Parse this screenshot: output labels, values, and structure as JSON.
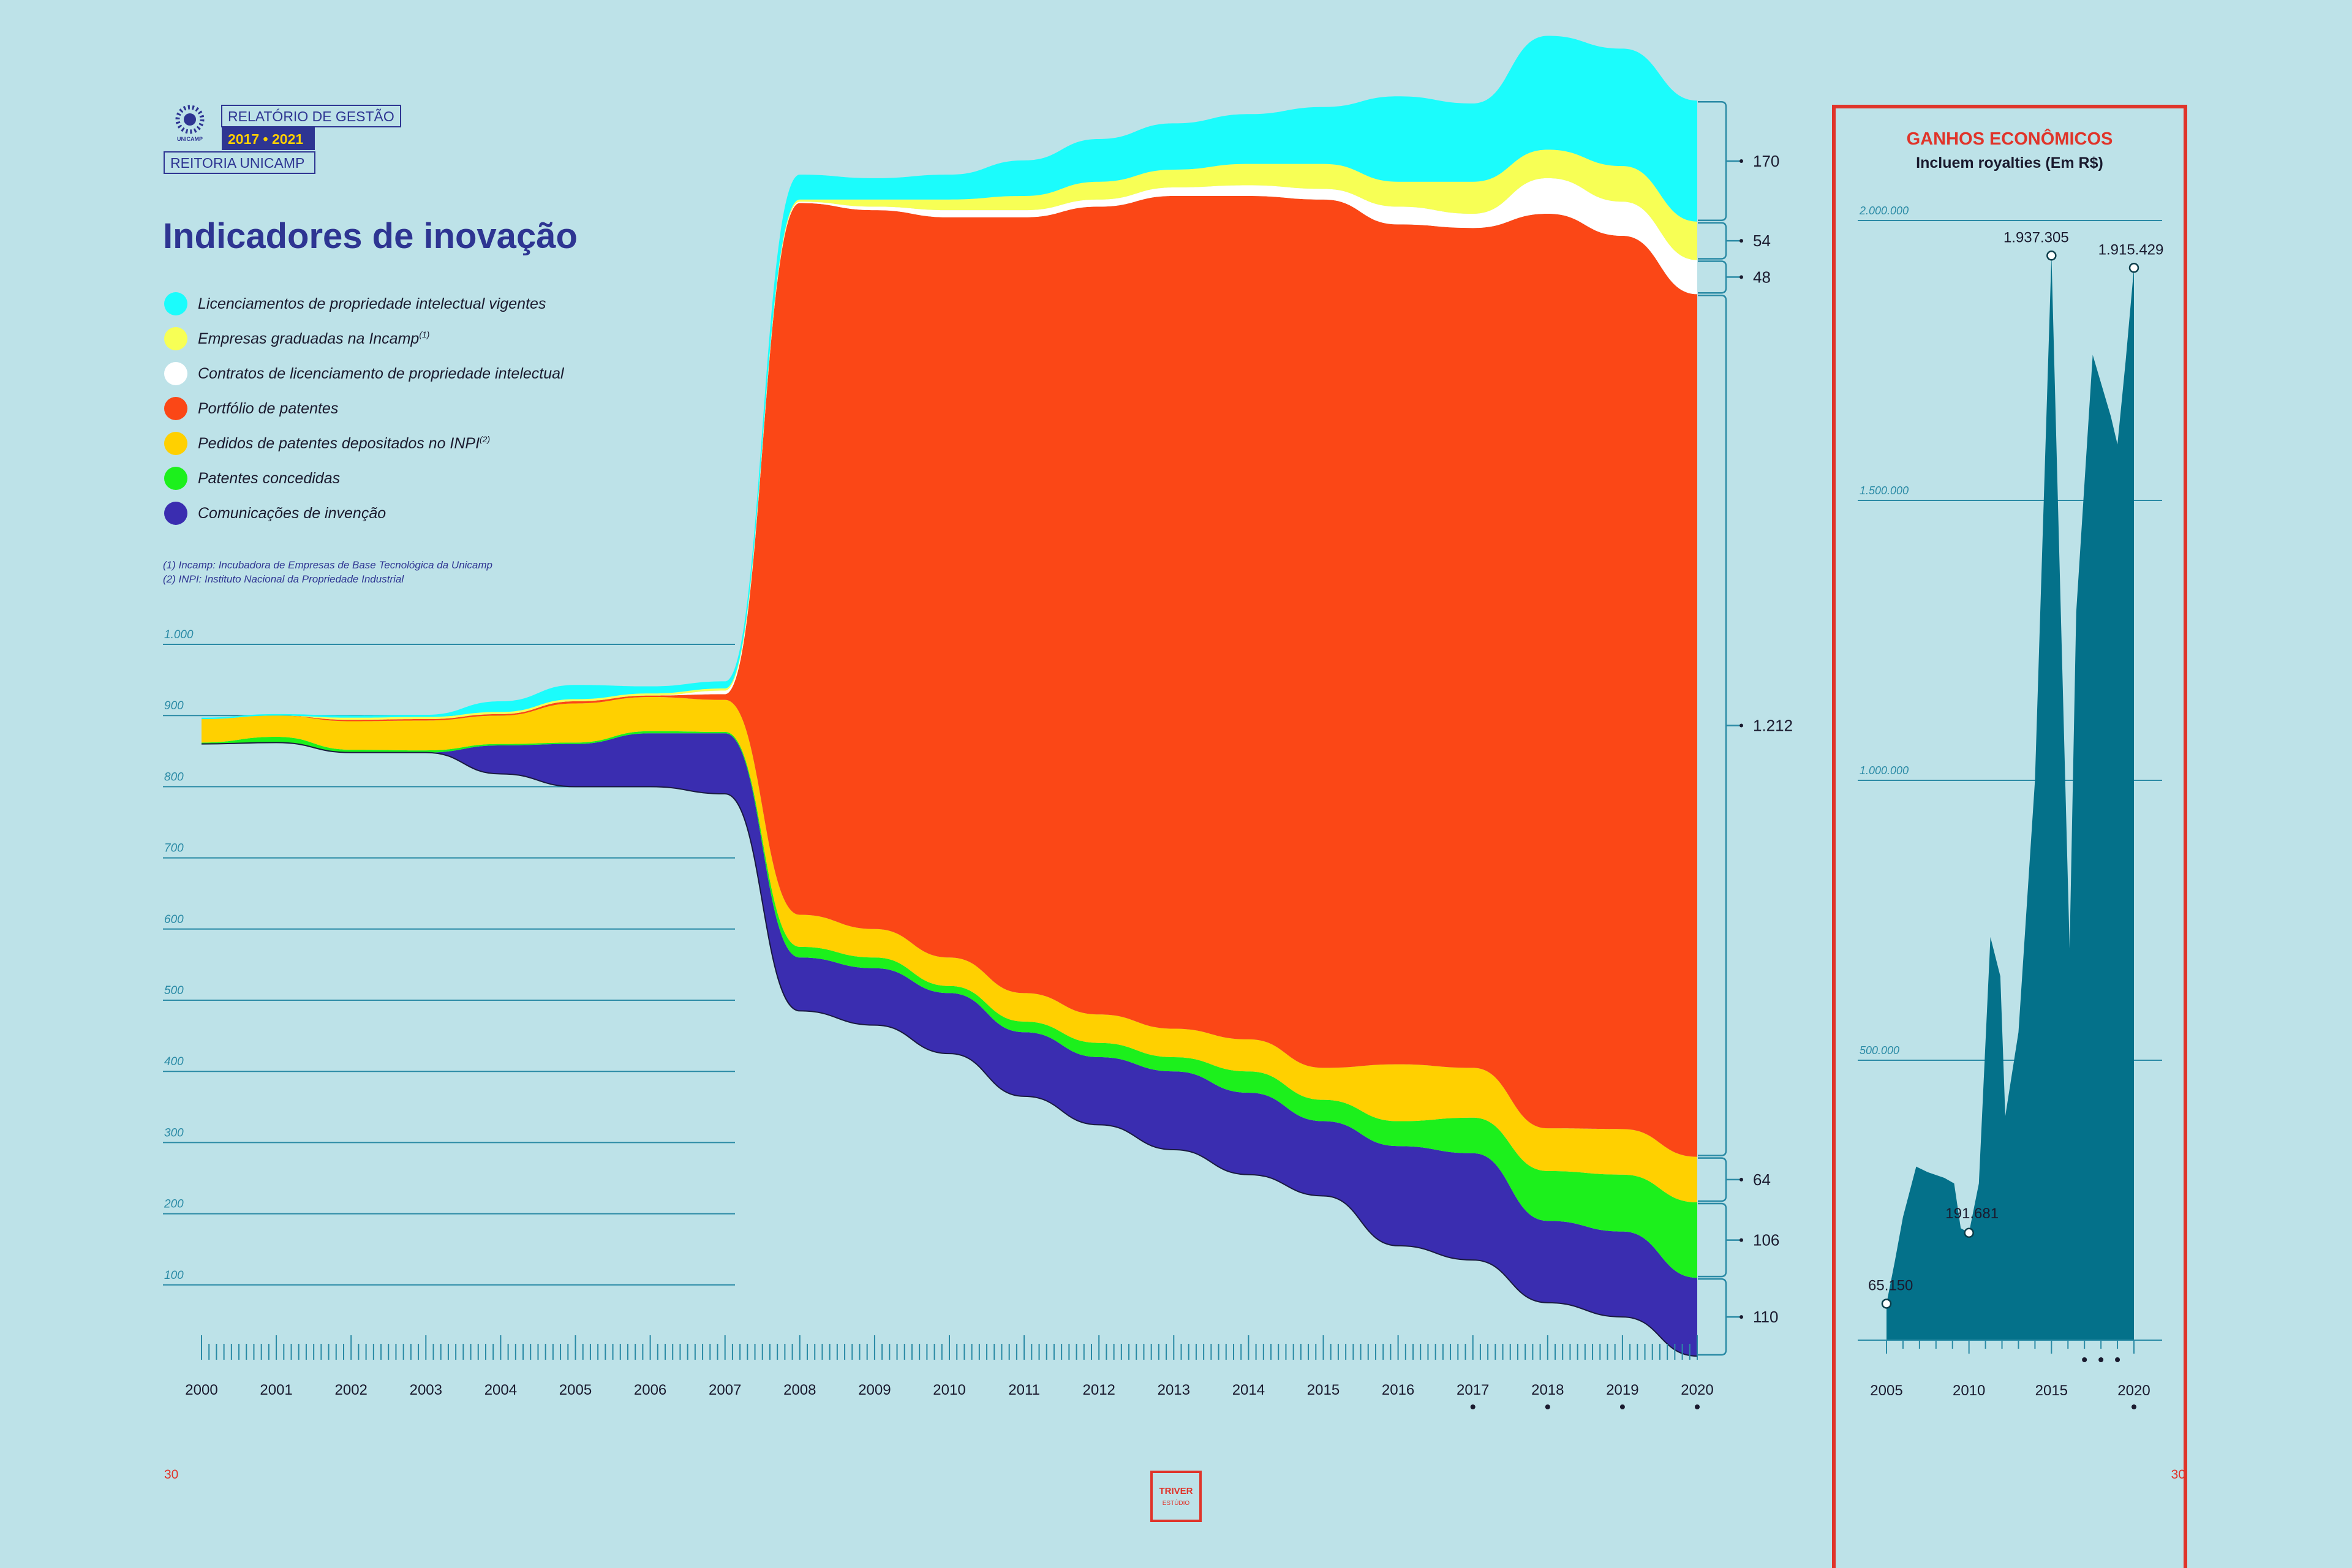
{
  "header": {
    "report_label": "RELATÓRIO DE GESTÃO",
    "period": "2017 • 2021",
    "org": "REITORIA UNICAMP",
    "logo_text": "UNICAMP"
  },
  "title": "Indicadores de inovação",
  "footnotes": [
    "(1) Incamp: Incubadora de Empresas de Base Tecnológica da Unicamp",
    "(2) INPI: Instituto Nacional da Propriedade Industrial"
  ],
  "page_numbers": {
    "left": "30",
    "right": "30"
  },
  "studio": {
    "line1": "TRIVER",
    "line2": "ESTÚDIO"
  },
  "colors": {
    "background": "#bde2e8",
    "title": "#2e3592",
    "accent_red": "#e0342a",
    "axis": "#2a8aa5"
  },
  "chart_data": [
    {
      "type": "area",
      "subtype": "stacked-stream",
      "title": "Indicadores de inovação",
      "x": [
        2000,
        2001,
        2002,
        2003,
        2004,
        2005,
        2006,
        2007,
        2008,
        2009,
        2010,
        2011,
        2012,
        2013,
        2014,
        2015,
        2016,
        2017,
        2018,
        2019,
        2020
      ],
      "x_tick_labels": [
        "2000",
        "2001",
        "2002",
        "2003",
        "2004",
        "2005",
        "2006",
        "2007",
        "2008",
        "2009",
        "2010",
        "2011",
        "2012",
        "2013",
        "2014",
        "2015",
        "2016",
        "2017",
        "2018",
        "2019",
        "2020"
      ],
      "x_marked": [
        2017,
        2018,
        2019,
        2020
      ],
      "y_ticks": [
        100,
        200,
        300,
        400,
        500,
        600,
        700,
        800,
        900,
        1000
      ],
      "y_tick_labels": [
        "100",
        "200",
        "300",
        "400",
        "500",
        "600",
        "700",
        "800",
        "900",
        "1.000"
      ],
      "grid": true,
      "legend_position": "top-left",
      "baseline": [
        860,
        862,
        848,
        848,
        818,
        800,
        800,
        790,
        485,
        465,
        425,
        365,
        325,
        290,
        255,
        225,
        155,
        135,
        75,
        55,
        0
      ],
      "series": [
        {
          "name": "Comunicações de invenção",
          "color": "#3a2db0",
          "values": [
            0,
            0,
            0,
            0,
            40,
            60,
            75,
            85,
            75,
            80,
            85,
            90,
            95,
            110,
            115,
            105,
            140,
            150,
            115,
            120,
            110
          ]
        },
        {
          "name": "Patentes concedidas",
          "color": "#1cf01c",
          "values": [
            2,
            8,
            4,
            3,
            2,
            2,
            3,
            2,
            15,
            15,
            10,
            15,
            20,
            20,
            30,
            30,
            35,
            50,
            70,
            80,
            106
          ]
        },
        {
          "name": "Pedidos de patentes depositados no INPI",
          "name_sup": "(2)",
          "color": "#ffd000",
          "values": [
            33,
            30,
            40,
            42,
            40,
            55,
            48,
            45,
            45,
            40,
            40,
            40,
            40,
            40,
            45,
            45,
            80,
            70,
            60,
            64,
            64
          ]
        },
        {
          "name": "Portfólio de patentes",
          "color": "#fb4716",
          "values": [
            0,
            0,
            2,
            2,
            2,
            3,
            2,
            8,
            1000,
            1010,
            1040,
            1090,
            1135,
            1170,
            1185,
            1220,
            1180,
            1180,
            1285,
            1255,
            1212
          ]
        },
        {
          "name": "Contratos de licenciamento de propriedade intelectual",
          "color": "#ffffff",
          "values": [
            0,
            0,
            0,
            0,
            0,
            0,
            0,
            5,
            2,
            5,
            10,
            10,
            10,
            12,
            15,
            15,
            25,
            20,
            50,
            48,
            48
          ]
        },
        {
          "name": "Empresas graduadas na Incamp",
          "name_sup": "(1)",
          "color": "#f7ff55",
          "values": [
            0,
            0,
            3,
            3,
            3,
            3,
            3,
            3,
            3,
            10,
            15,
            20,
            25,
            25,
            30,
            35,
            35,
            45,
            40,
            50,
            54
          ]
        },
        {
          "name": "Licenciamentos de propriedade intelectual vigentes",
          "color": "#1bfcfc",
          "values": [
            2,
            2,
            3,
            3,
            15,
            20,
            10,
            10,
            35,
            30,
            35,
            50,
            60,
            65,
            70,
            80,
            120,
            110,
            160,
            165,
            170
          ]
        }
      ],
      "end_labels": [
        "110",
        "106",
        "64",
        "1.212",
        "48",
        "54",
        "170"
      ]
    },
    {
      "type": "area",
      "title": "GANHOS ECONÔMICOS",
      "subtitle": "Incluem royalties (Em R$)",
      "color": "#04718a",
      "x": [
        2005,
        2005.5,
        2006,
        2006.8,
        2007.5,
        2008.5,
        2009.1,
        2009.5,
        2010,
        2010.6,
        2011.3,
        2011.9,
        2012.2,
        2013,
        2014,
        2015,
        2016.1,
        2016.5,
        2017.5,
        2018.6,
        2019,
        2019.5,
        2020
      ],
      "y": [
        65150,
        140000,
        220000,
        310000,
        300000,
        290000,
        280000,
        200000,
        191681,
        280000,
        720000,
        650000,
        400000,
        550000,
        1000000,
        1937305,
        700000,
        1300000,
        1760000,
        1650000,
        1600000,
        1750000,
        1915429
      ],
      "x_tick_labels": [
        "2005",
        "2010",
        "2015",
        "2020"
      ],
      "x_marked": [
        2017,
        2018,
        2019,
        2020
      ],
      "y_ticks": [
        500000,
        1000000,
        1500000,
        2000000
      ],
      "y_tick_labels": [
        "500.000",
        "1.000.000",
        "1.500.000",
        "2.000.000"
      ],
      "ylim": [
        0,
        2000000
      ],
      "annotations": [
        {
          "x": 2005,
          "y": 65150,
          "label": "65.150"
        },
        {
          "x": 2010,
          "y": 191681,
          "label": "191.681"
        },
        {
          "x": 2015,
          "y": 1937305,
          "label": "1.937.305"
        },
        {
          "x": 2020,
          "y": 1915429,
          "label": "1.915.429"
        }
      ]
    }
  ]
}
